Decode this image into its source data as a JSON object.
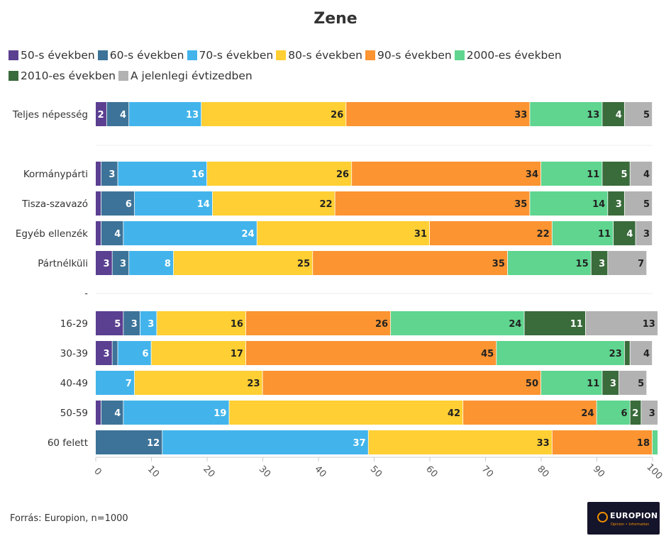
{
  "chart_data": {
    "type": "bar",
    "orientation": "horizontal",
    "stacked": true,
    "title": "Zene",
    "xlim": [
      0,
      100
    ],
    "x_ticks": [
      "0",
      "10",
      "20",
      "30",
      "40",
      "50",
      "60",
      "70",
      "80",
      "90",
      "100"
    ],
    "legend_position": "top-left",
    "grid": false,
    "categories": [
      "Teljes népesség",
      "Kormánypárti",
      "Tisza-szavazó",
      "Egyéb ellenzék",
      "Pártnélküli",
      "16-29",
      "30-39",
      "40-49",
      "50-59",
      "60 felett"
    ],
    "series": [
      {
        "name": "50-s években",
        "color": "#5b3f91",
        "label_color": "#ffffff",
        "values": [
          2,
          1,
          1,
          1,
          3,
          5,
          3,
          0,
          1,
          0
        ],
        "labels": [
          "2",
          "",
          "",
          "",
          "3",
          "5",
          "3",
          "",
          "",
          ""
        ]
      },
      {
        "name": "60-s években",
        "color": "#3d7398",
        "label_color": "#ffffff",
        "values": [
          4,
          3,
          6,
          4,
          3,
          3,
          1,
          0,
          4,
          12
        ],
        "labels": [
          "4",
          "3",
          "6",
          "4",
          "3",
          "3",
          "",
          "",
          "4",
          "12"
        ]
      },
      {
        "name": "70-s években",
        "color": "#42b4eb",
        "label_color": "#ffffff",
        "values": [
          13,
          16,
          14,
          24,
          8,
          3,
          6,
          7,
          19,
          37
        ],
        "labels": [
          "13",
          "16",
          "14",
          "24",
          "8",
          "3",
          "6",
          "7",
          "19",
          "37"
        ]
      },
      {
        "name": "80-s években",
        "color": "#ffcf33",
        "label_color": "#222222",
        "values": [
          26,
          26,
          22,
          31,
          25,
          16,
          17,
          23,
          42,
          33
        ],
        "labels": [
          "26",
          "26",
          "22",
          "31",
          "25",
          "16",
          "17",
          "23",
          "42",
          "33"
        ]
      },
      {
        "name": "90-s években",
        "color": "#fb9431",
        "label_color": "#222222",
        "values": [
          33,
          34,
          35,
          22,
          35,
          26,
          45,
          50,
          24,
          18
        ],
        "labels": [
          "33",
          "34",
          "35",
          "22",
          "35",
          "26",
          "45",
          "50",
          "24",
          "18"
        ]
      },
      {
        "name": "2000-es években",
        "color": "#5fd58f",
        "label_color": "#222222",
        "values": [
          13,
          11,
          14,
          11,
          15,
          24,
          23,
          11,
          6,
          1
        ],
        "labels": [
          "13",
          "11",
          "14",
          "11",
          "15",
          "24",
          "23",
          "11",
          "6",
          ""
        ]
      },
      {
        "name": "2010-es években",
        "color": "#3a6b3b",
        "label_color": "#ffffff",
        "values": [
          4,
          5,
          3,
          4,
          3,
          11,
          1,
          3,
          2,
          0
        ],
        "labels": [
          "4",
          "5",
          "3",
          "4",
          "3",
          "11",
          "",
          "3",
          "2",
          ""
        ]
      },
      {
        "name": "A jelenlegi évtizedben",
        "color": "#b2b2b2",
        "label_color": "#222222",
        "values": [
          5,
          4,
          5,
          3,
          7,
          13,
          4,
          5,
          3,
          0
        ],
        "labels": [
          "5",
          "4",
          "5",
          "3",
          "7",
          "13",
          "4",
          "5",
          "3",
          ""
        ]
      }
    ]
  },
  "separator_label": "-",
  "source": "Forrás: Europion, n=1000",
  "logo": {
    "text": "EUROPION",
    "subtitle": "Opinion • Information"
  }
}
